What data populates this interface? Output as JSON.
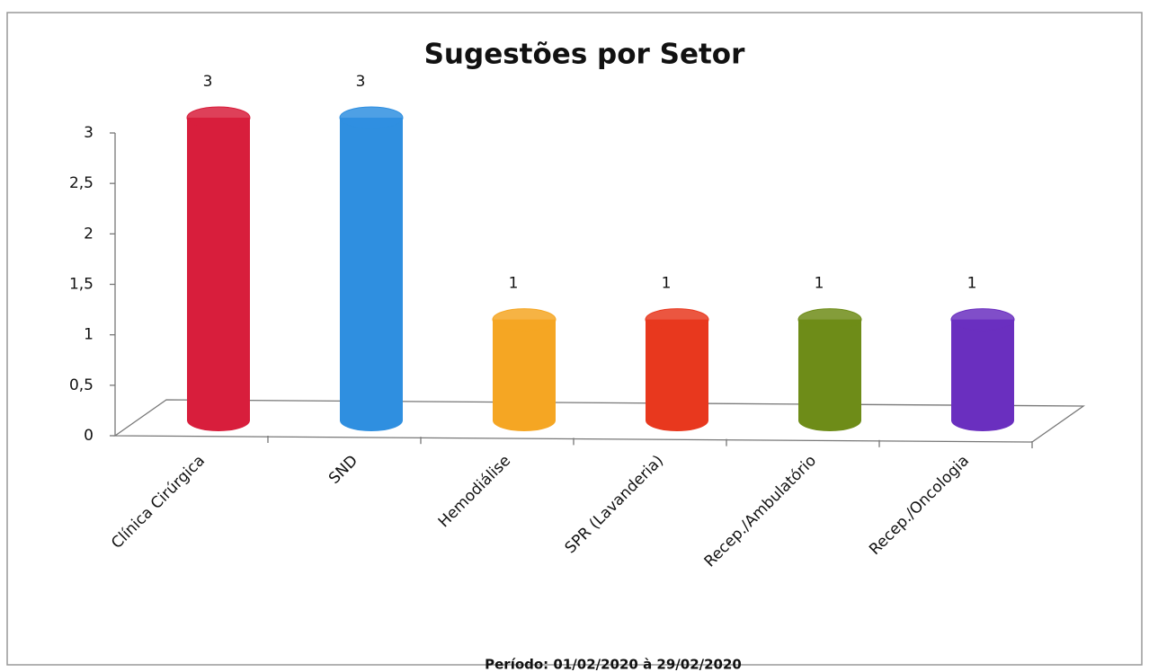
{
  "chart_data": {
    "type": "bar",
    "title": "Sugestões por Setor",
    "footnote": "Período: 01/02/2020 à 29/02/2020",
    "categories": [
      "Clínica Cirúrgica",
      "SND",
      "Hemodiálise",
      "SPR (Lavanderia)",
      "Recep./Ambulatório",
      "Recep./Oncologia"
    ],
    "values": [
      3,
      3,
      1,
      1,
      1,
      1
    ],
    "colors": [
      "#d81e3c",
      "#2f8fe0",
      "#f5a623",
      "#e8381e",
      "#6e8c18",
      "#6a2fbf"
    ],
    "ylim": [
      0,
      3
    ],
    "yticks": [
      0,
      {
        "value": 0.5,
        "label": "0,5"
      },
      1,
      {
        "value": 1.5,
        "label": "1,5"
      },
      2,
      {
        "value": 2.5,
        "label": "2,5"
      },
      3
    ],
    "grid": false
  }
}
